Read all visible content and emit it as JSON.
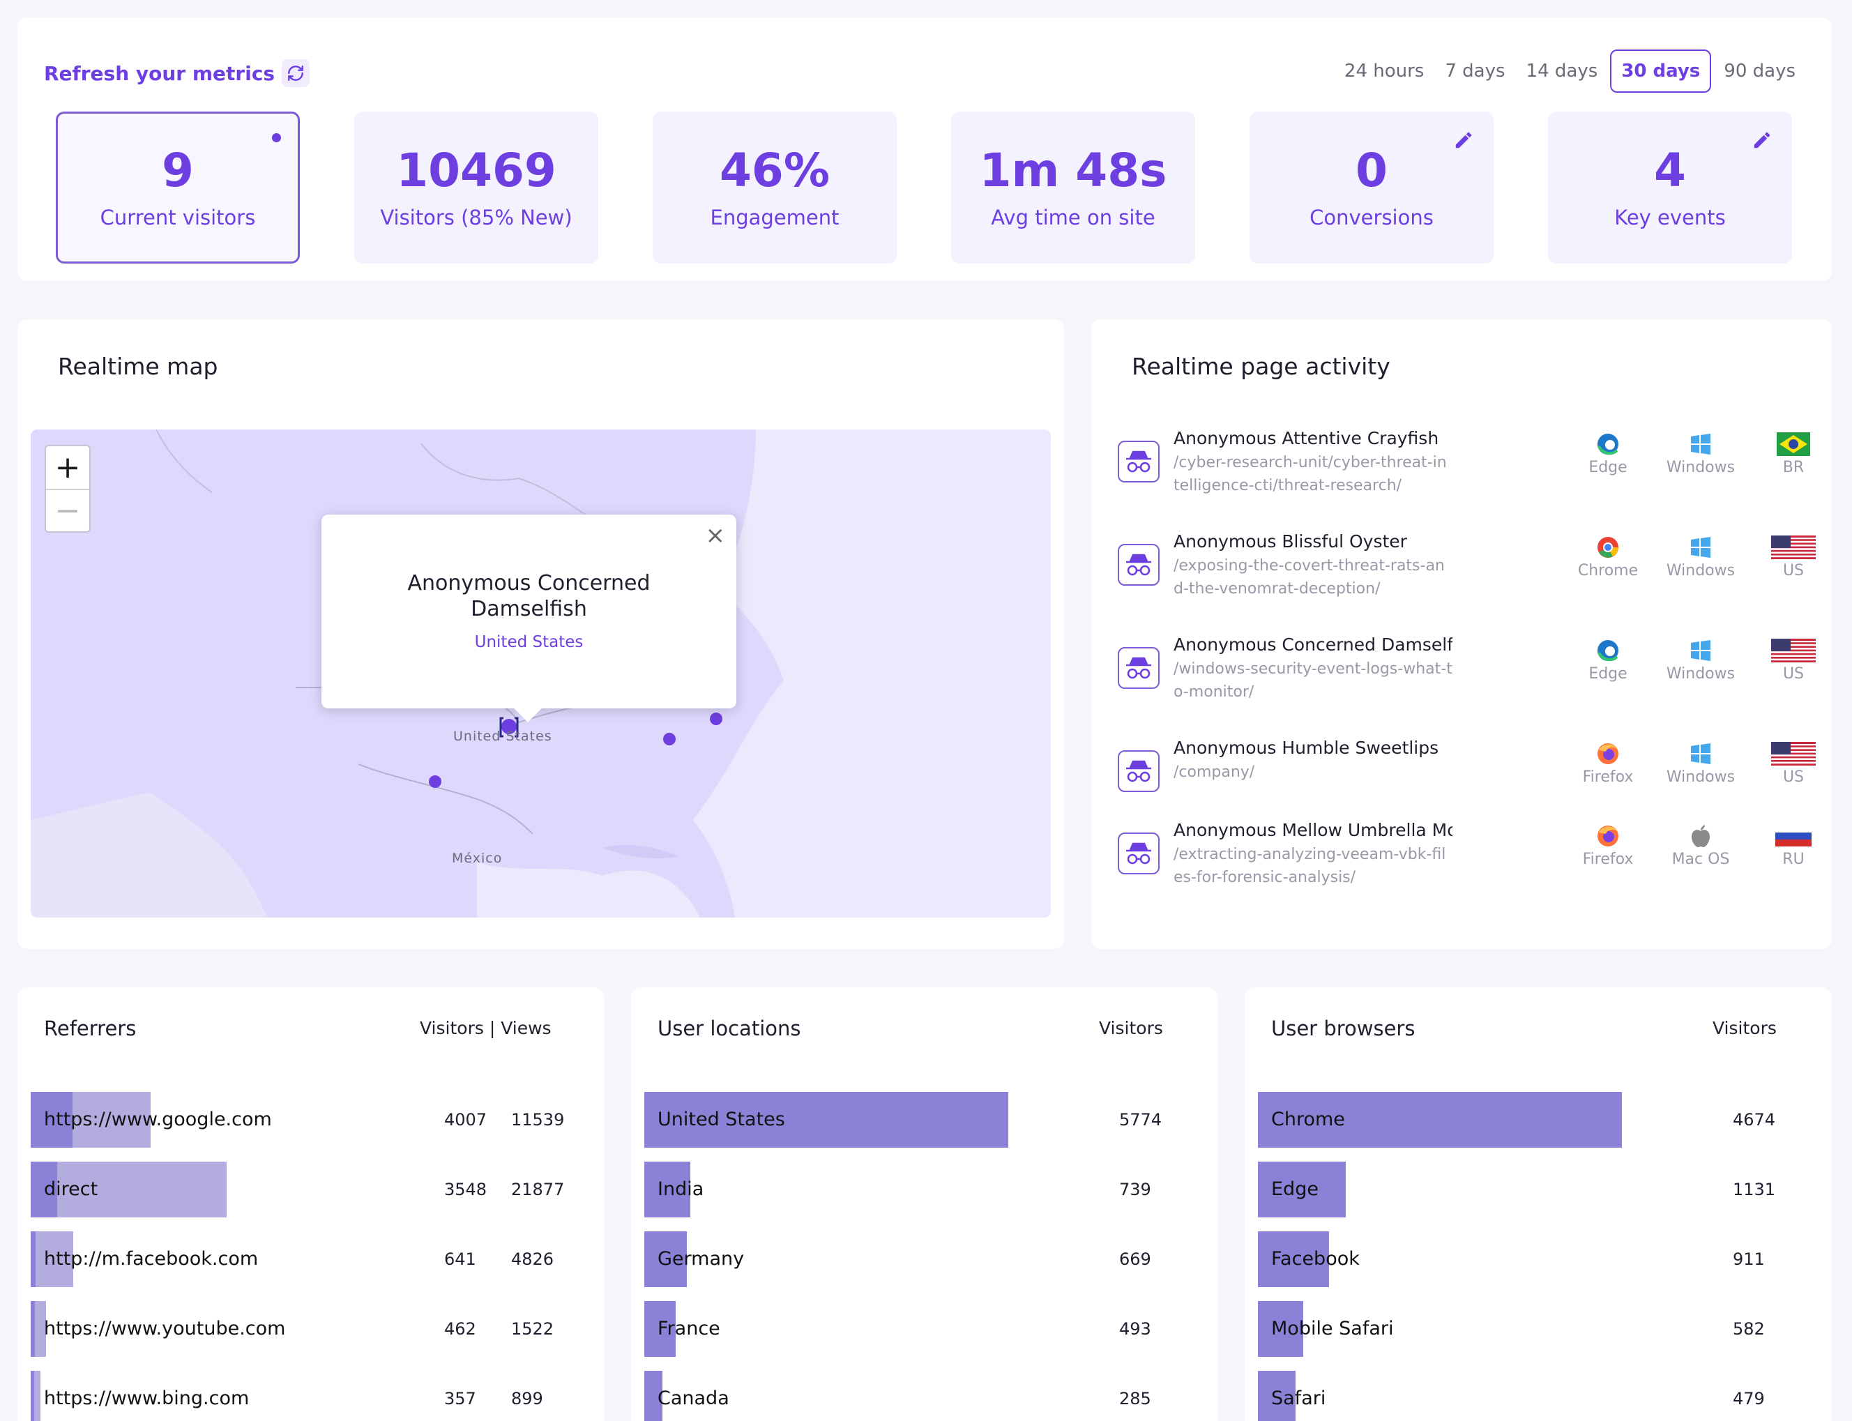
{
  "metrics": {
    "refresh_label": "Refresh your metrics",
    "ranges": [
      "24 hours",
      "7 days",
      "14 days",
      "30 days",
      "90 days"
    ],
    "active_range": "30 days",
    "stats": [
      {
        "value": "9",
        "label": "Current visitors"
      },
      {
        "value": "10469",
        "label": "Visitors (85% New)"
      },
      {
        "value": "46%",
        "label": "Engagement"
      },
      {
        "value": "1m 48s",
        "label": "Avg time on site"
      },
      {
        "value": "0",
        "label": "Conversions"
      },
      {
        "value": "4",
        "label": "Key events"
      }
    ]
  },
  "map": {
    "title": "Realtime map",
    "zoom_in": "+",
    "zoom_out": "−",
    "popup": {
      "name": "Anonymous Concerned Damselfish",
      "country": "United States",
      "close": "×"
    },
    "labels": {
      "us": "United States",
      "mexico": "México"
    }
  },
  "activity": {
    "title": "Realtime page activity",
    "rows": [
      {
        "name": "Anonymous Attentive Crayfish",
        "path": "/cyber-research-unit/cyber-threat-intelligence-cti/threat-research/",
        "browser": "Edge",
        "os": "Windows",
        "country": "BR"
      },
      {
        "name": "Anonymous Blissful Oyster",
        "path": "/exposing-the-covert-threat-rats-and-the-venomrat-deception/",
        "browser": "Chrome",
        "os": "Windows",
        "country": "US"
      },
      {
        "name": "Anonymous Concerned Damselfish",
        "path": "/windows-security-event-logs-what-to-monitor/",
        "browser": "Edge",
        "os": "Windows",
        "country": "US"
      },
      {
        "name": "Anonymous Humble Sweetlips",
        "path": "/company/",
        "browser": "Firefox",
        "os": "Windows",
        "country": "US"
      },
      {
        "name": "Anonymous Mellow Umbrella Mouse",
        "path": "/extracting-analyzing-veeam-vbk-files-for-forensic-analysis/",
        "browser": "Firefox",
        "os": "Mac OS",
        "country": "RU"
      }
    ]
  },
  "referrers": {
    "title": "Referrers",
    "head_visitors": "Visitors",
    "head_sep": "|",
    "head_views": "Views",
    "rows": [
      {
        "label": "https://www.google.com",
        "visitors": "4007",
        "views": "11539",
        "visitors_frac": 0.075,
        "views_frac": 0.215
      },
      {
        "label": "direct",
        "visitors": "3548",
        "views": "21877",
        "visitors_frac": 0.048,
        "views_frac": 0.351
      },
      {
        "label": "http://m.facebook.com",
        "visitors": "641",
        "views": "4826",
        "visitors_frac": 0.009,
        "views_frac": 0.076
      },
      {
        "label": "https://www.youtube.com",
        "visitors": "462",
        "views": "1522",
        "visitors_frac": 0.008,
        "views_frac": 0.027
      },
      {
        "label": "https://www.bing.com",
        "visitors": "357",
        "views": "899",
        "visitors_frac": 0.006,
        "views_frac": 0.017
      }
    ]
  },
  "locations": {
    "title": "User locations",
    "head": "Visitors",
    "rows": [
      {
        "label": "United States",
        "value": "5774",
        "frac": 0.653
      },
      {
        "label": "India",
        "value": "739",
        "frac": 0.083
      },
      {
        "label": "Germany",
        "value": "669",
        "frac": 0.076
      },
      {
        "label": "France",
        "value": "493",
        "frac": 0.056
      },
      {
        "label": "Canada",
        "value": "285",
        "frac": 0.032
      }
    ]
  },
  "browsers": {
    "title": "User browsers",
    "head": "Visitors",
    "rows": [
      {
        "label": "Chrome",
        "value": "4674",
        "frac": 0.653
      },
      {
        "label": "Edge",
        "value": "1131",
        "frac": 0.158
      },
      {
        "label": "Facebook",
        "value": "911",
        "frac": 0.127
      },
      {
        "label": "Mobile Safari",
        "value": "582",
        "frac": 0.081
      },
      {
        "label": "Safari",
        "value": "479",
        "frac": 0.067
      }
    ]
  },
  "colors": {
    "accent": "#6d3fe0",
    "bar": "#8982d6",
    "bar_light": "#b3acdf",
    "map_land": "#ddd8fc"
  },
  "icons": {
    "refresh": "refresh-icon",
    "edit": "pencil-icon",
    "visitor": "incognito-icon"
  }
}
